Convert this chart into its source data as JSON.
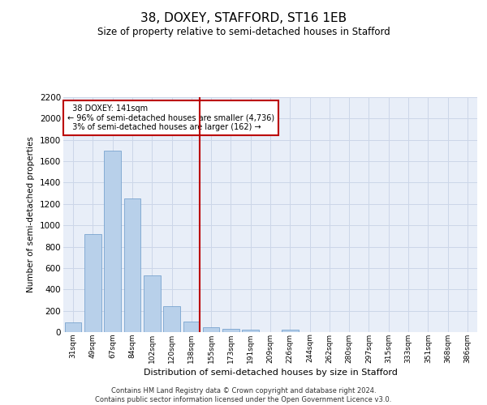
{
  "title": "38, DOXEY, STAFFORD, ST16 1EB",
  "subtitle": "Size of property relative to semi-detached houses in Stafford",
  "xlabel": "Distribution of semi-detached houses by size in Stafford",
  "ylabel": "Number of semi-detached properties",
  "footnote": "Contains HM Land Registry data © Crown copyright and database right 2024.\nContains public sector information licensed under the Open Government Licence v3.0.",
  "bar_color": "#b8d0ea",
  "bar_edge_color": "#6898c8",
  "categories": [
    "31sqm",
    "49sqm",
    "67sqm",
    "84sqm",
    "102sqm",
    "120sqm",
    "138sqm",
    "155sqm",
    "173sqm",
    "191sqm",
    "209sqm",
    "226sqm",
    "244sqm",
    "262sqm",
    "280sqm",
    "297sqm",
    "315sqm",
    "333sqm",
    "351sqm",
    "368sqm",
    "386sqm"
  ],
  "values": [
    90,
    920,
    1700,
    1250,
    530,
    240,
    100,
    45,
    28,
    20,
    0,
    20,
    0,
    0,
    0,
    0,
    0,
    0,
    0,
    0,
    0
  ],
  "property_size_label": "38 DOXEY: 141sqm",
  "pct_smaller": 96,
  "n_smaller": 4736,
  "pct_larger": 3,
  "n_larger": 162,
  "vline_x": 6.42,
  "vline_color": "#bb0000",
  "ylim": [
    0,
    2200
  ],
  "yticks": [
    0,
    200,
    400,
    600,
    800,
    1000,
    1200,
    1400,
    1600,
    1800,
    2000,
    2200
  ],
  "annotation_box_color": "#ffffff",
  "annotation_box_edge_color": "#bb0000",
  "grid_color": "#ccd6e8",
  "background_color": "#e8eef8"
}
